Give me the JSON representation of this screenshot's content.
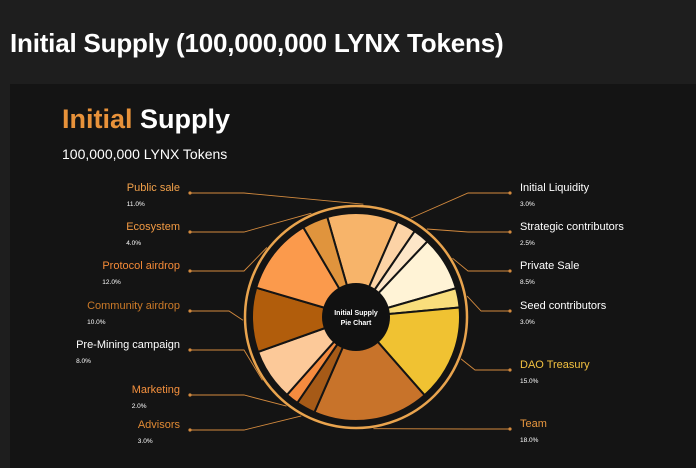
{
  "page": {
    "heading": "Initial Supply (100,000,000 LYNX Tokens)"
  },
  "chart_data": {
    "type": "pie",
    "title_accent": "Initial",
    "title_rest": "Supply",
    "subtitle": "100,000,000 LYNX Tokens",
    "center_label_line1": "Initial Supply",
    "center_label_line2": "Pie Chart",
    "unit": "%",
    "slices": [
      {
        "label": "Public sale",
        "value": 11.0,
        "value_text": "11.0%",
        "color": "#f7b46a",
        "label_color": "#f2a14a"
      },
      {
        "label": "Initial Liquidity",
        "value": 3.0,
        "value_text": "3.0%",
        "color": "#fcd3a6",
        "label_color": "#ffffff"
      },
      {
        "label": "Strategic contributors",
        "value": 2.5,
        "value_text": "2.5%",
        "color": "#fde6c8",
        "label_color": "#ffffff"
      },
      {
        "label": "Private Sale",
        "value": 8.5,
        "value_text": "8.5%",
        "color": "#fff3d6",
        "label_color": "#ffffff"
      },
      {
        "label": "Seed contributors",
        "value": 3.0,
        "value_text": "3.0%",
        "color": "#f9de7c",
        "label_color": "#ffffff"
      },
      {
        "label": "DAO Treasury",
        "value": 15.0,
        "value_text": "15.0%",
        "color": "#f0c232",
        "label_color": "#f2c140"
      },
      {
        "label": "Team",
        "value": 18.0,
        "value_text": "18.0%",
        "color": "#c8732a",
        "label_color": "#e9973f"
      },
      {
        "label": "Advisors",
        "value": 3.0,
        "value_text": "3.0%",
        "color": "#a65a17",
        "label_color": "#e08a34"
      },
      {
        "label": "Marketing",
        "value": 2.0,
        "value_text": "2.0%",
        "color": "#f58b3f",
        "label_color": "#f5913e"
      },
      {
        "label": "Pre-Mining campaign",
        "value": 8.0,
        "value_text": "8.0%",
        "color": "#fcc999",
        "label_color": "#ffffff"
      },
      {
        "label": "Community airdrop",
        "value": 10.0,
        "value_text": "10.0%",
        "color": "#b15d0c",
        "label_color": "#cc7a28"
      },
      {
        "label": "Protocol airdrop",
        "value": 12.0,
        "value_text": "12.0%",
        "color": "#fb9a4c",
        "label_color": "#f48a37"
      },
      {
        "label": "Ecosystem",
        "value": 4.0,
        "value_text": "4.0%",
        "color": "#e0943d",
        "label_color": "#f29a43"
      }
    ]
  }
}
